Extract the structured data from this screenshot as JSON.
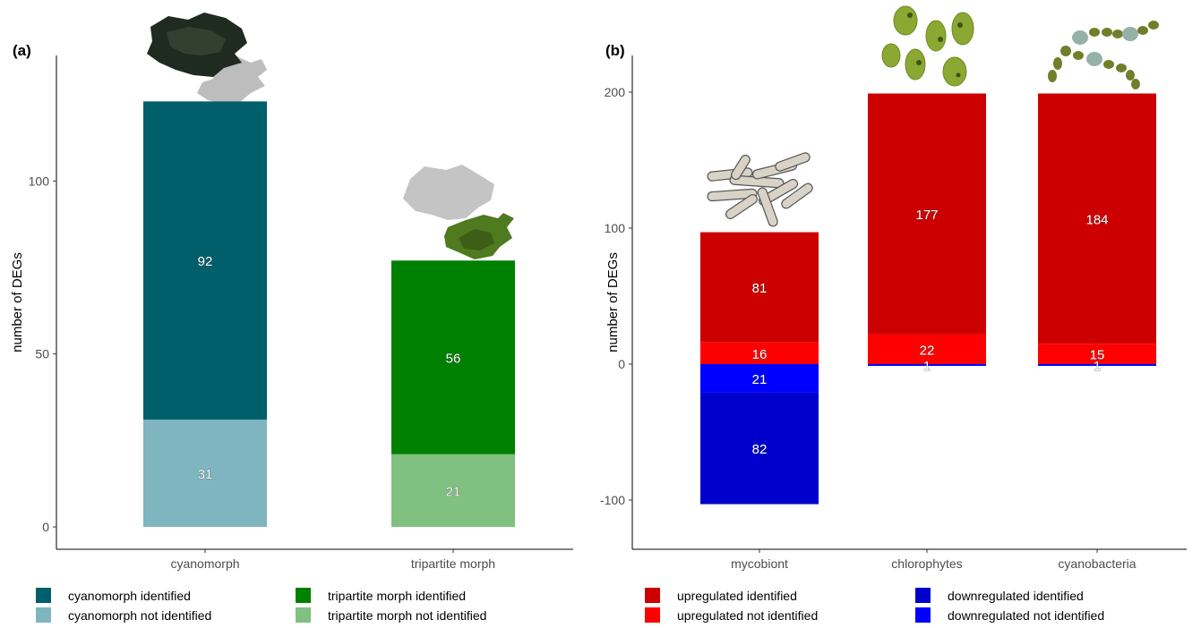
{
  "chart_data": [
    {
      "panel": "(a)",
      "type": "bar",
      "stacked": true,
      "ylabel": "number of DEGs",
      "xlabel": "",
      "ylim": [
        0,
        125
      ],
      "yticks": [
        0,
        50,
        100
      ],
      "categories": [
        "cyanomorph",
        "tripartite morph"
      ],
      "series": [
        {
          "name": "cyanomorph not identified",
          "color": "#7fb5be",
          "values": [
            31,
            null
          ]
        },
        {
          "name": "cyanomorph identified",
          "color": "#005f6b",
          "values": [
            92,
            null
          ]
        },
        {
          "name": "tripartite morph not identified",
          "color": "#80c080",
          "values": [
            null,
            21
          ]
        },
        {
          "name": "tripartite morph identified",
          "color": "#008000",
          "values": [
            null,
            56
          ]
        }
      ],
      "legend_position": "bottom",
      "grid": false
    },
    {
      "panel": "(b)",
      "type": "bar",
      "stacked": true,
      "diverging": true,
      "ylabel": "number of DEGs",
      "xlabel": "",
      "ylim": [
        -140,
        225
      ],
      "yticks": [
        -100,
        0,
        100,
        200
      ],
      "categories": [
        "mycobiont",
        "chlorophytes",
        "cyanobacteria"
      ],
      "series": [
        {
          "name": "upregulated not identified",
          "color": "#ff0000",
          "direction": "up",
          "values": [
            16,
            22,
            15
          ]
        },
        {
          "name": "upregulated identified",
          "color": "#cc0000",
          "direction": "up",
          "values": [
            81,
            177,
            184
          ]
        },
        {
          "name": "downregulated not identified",
          "color": "#0000ff",
          "direction": "down",
          "values": [
            21,
            1,
            1
          ]
        },
        {
          "name": "downregulated identified",
          "color": "#0000cc",
          "direction": "down",
          "values": [
            82,
            0,
            0
          ]
        }
      ],
      "legend_position": "bottom",
      "grid": false
    }
  ]
}
